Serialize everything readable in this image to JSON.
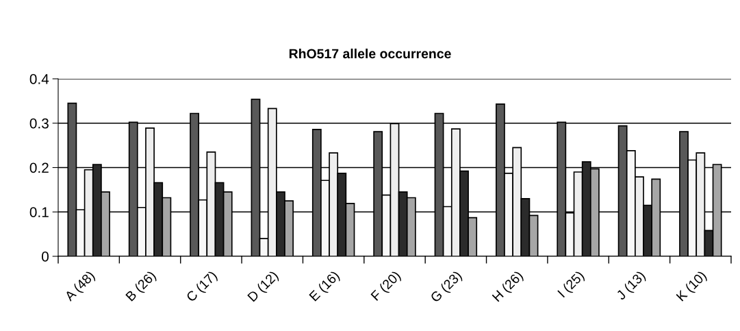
{
  "chart_data": {
    "type": "bar",
    "title": "RhO517 allele occurrence",
    "categories": [
      "A (48)",
      "B (26)",
      "C (17)",
      "D (12)",
      "E (16)",
      "F (20)",
      "G (23)",
      "H (26)",
      "I (25)",
      "J (13)",
      "K (10)"
    ],
    "series": [
      {
        "color": "#595959",
        "values": [
          0.345,
          0.302,
          0.322,
          0.354,
          0.286,
          0.281,
          0.322,
          0.343,
          0.302,
          0.294,
          0.281
        ]
      },
      {
        "color": "#f8f8f8",
        "values": [
          0.105,
          0.11,
          0.127,
          0.04,
          0.171,
          0.138,
          0.112,
          0.187,
          0.098,
          0.238,
          0.217
        ]
      },
      {
        "color": "#eeeeee",
        "values": [
          0.195,
          0.289,
          0.235,
          0.333,
          0.233,
          0.299,
          0.287,
          0.245,
          0.19,
          0.179,
          0.233
        ]
      },
      {
        "color": "#2b2b2b",
        "values": [
          0.207,
          0.166,
          0.166,
          0.145,
          0.187,
          0.145,
          0.192,
          0.13,
          0.213,
          0.115,
          0.058
        ]
      },
      {
        "color": "#a6a6a6",
        "values": [
          0.145,
          0.132,
          0.145,
          0.125,
          0.119,
          0.132,
          0.087,
          0.092,
          0.197,
          0.174,
          0.207
        ]
      }
    ],
    "ylim": [
      0,
      0.4
    ],
    "yticks": [
      {
        "value": 0,
        "label": "0"
      },
      0.1,
      0.2,
      0.3,
      0.4
    ],
    "grid": "y",
    "legend": false
  }
}
